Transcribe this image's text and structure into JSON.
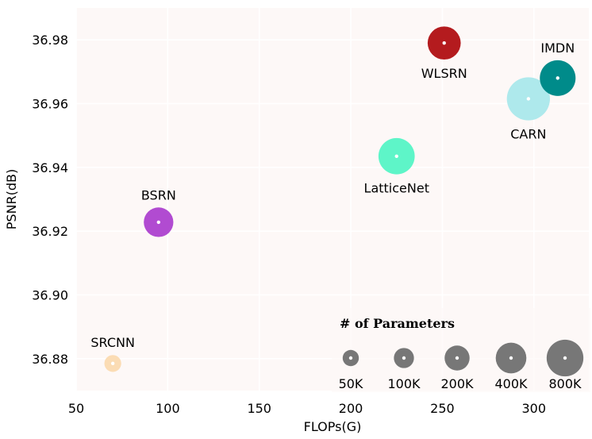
{
  "chart_data": {
    "type": "scatter",
    "title": "",
    "xlabel": "FLOPs(G)",
    "ylabel": "PSNR(dB)",
    "xlim": [
      50,
      330
    ],
    "ylim": [
      36.87,
      36.99
    ],
    "xticks": [
      50,
      100,
      150,
      200,
      250,
      300
    ],
    "yticks": [
      36.88,
      36.9,
      36.92,
      36.94,
      36.96,
      36.98
    ],
    "ytick_labels": [
      "36.88",
      "36.90",
      "36.92",
      "36.94",
      "36.96",
      "36.98"
    ],
    "grid": true,
    "background": "#fdf8f7",
    "points": [
      {
        "label": "SRCNN",
        "flops": 70,
        "psnr": 36.8785,
        "params": "57K",
        "color": "#fbdcb4",
        "label_pos": "above"
      },
      {
        "label": "BSRN",
        "flops": 95,
        "psnr": 36.9228,
        "params": "352K",
        "color": "#b14bd1",
        "label_pos": "above"
      },
      {
        "label": "LatticeNet",
        "flops": 225,
        "psnr": 36.9435,
        "params": "756K",
        "color": "#5ef5c8",
        "label_pos": "below"
      },
      {
        "label": "WLSRN",
        "flops": 251,
        "psnr": 36.979,
        "params": "530K",
        "color": "#b41b1e",
        "label_pos": "below"
      },
      {
        "label": "CARN",
        "flops": 297,
        "psnr": 36.9615,
        "params": "1592K",
        "color": "#aee9ec",
        "label_pos": "below"
      },
      {
        "label": "IMDN",
        "flops": 313,
        "psnr": 36.968,
        "params": "715K",
        "color": "#008b8a",
        "label_pos": "above"
      }
    ],
    "legend": {
      "title": "# of Parameters",
      "placement": "bottom-right",
      "color": "#777777",
      "entries": [
        "50K",
        "100K",
        "200K",
        "400K",
        "800K"
      ]
    }
  }
}
